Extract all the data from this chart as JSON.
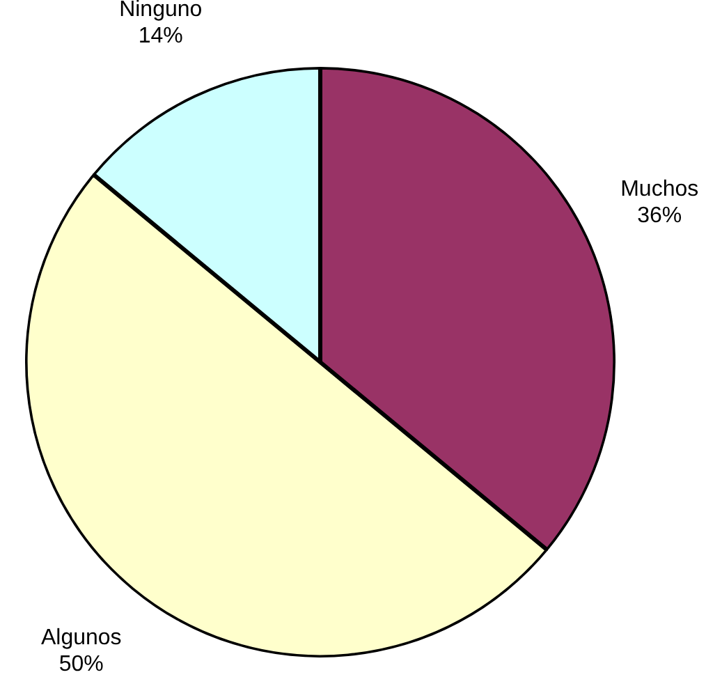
{
  "chart_data": {
    "type": "pie",
    "categories": [
      "Muchos",
      "Algunos",
      "Ninguno"
    ],
    "values": [
      36,
      50,
      14
    ],
    "colors": [
      "#993366",
      "#ffffcc",
      "#ccffff"
    ],
    "value_labels": [
      "36%",
      "50%",
      "14%"
    ],
    "legend": false
  }
}
